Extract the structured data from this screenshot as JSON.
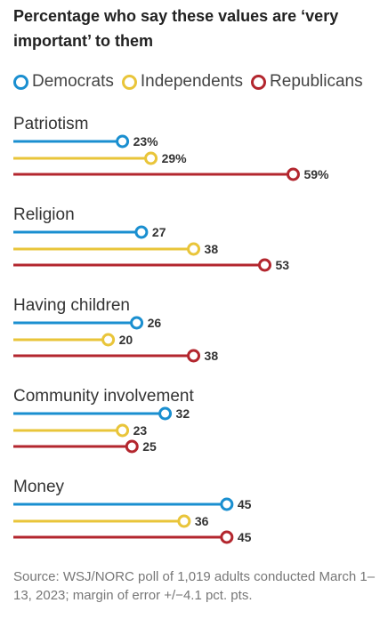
{
  "title": "Percentage who say these values are ‘very important’ to them",
  "legend": [
    {
      "name": "Democrats",
      "color": "#1a8fd0"
    },
    {
      "name": "Independents",
      "color": "#e9c53a"
    },
    {
      "name": "Republicans",
      "color": "#b3262e"
    }
  ],
  "source": "Source: WSJ/NORC poll of 1,019 adults conducted March 1–13, 2023; margin of error +/−4.1 pct. pts.",
  "chart_data": {
    "type": "bar",
    "title": "Percentage who say these values are ‘very important’ to them",
    "categories": [
      "Patriotism",
      "Religion",
      "Having children",
      "Community involvement",
      "Money"
    ],
    "series": [
      {
        "name": "Democrats",
        "color": "#1a8fd0",
        "values": [
          23,
          27,
          26,
          32,
          45
        ]
      },
      {
        "name": "Independents",
        "color": "#e9c53a",
        "values": [
          29,
          38,
          20,
          23,
          36
        ]
      },
      {
        "name": "Republicans",
        "color": "#b3262e",
        "values": [
          59,
          53,
          38,
          25,
          45
        ]
      }
    ],
    "value_labels": [
      [
        "23%",
        "29%",
        "59%"
      ],
      [
        "27",
        "38",
        "53"
      ],
      [
        "26",
        "20",
        "38"
      ],
      [
        "32",
        "23",
        "25"
      ],
      [
        "45",
        "36",
        "45"
      ]
    ],
    "xlim": [
      0,
      100
    ],
    "grid": false,
    "legend_position": "top-left"
  }
}
